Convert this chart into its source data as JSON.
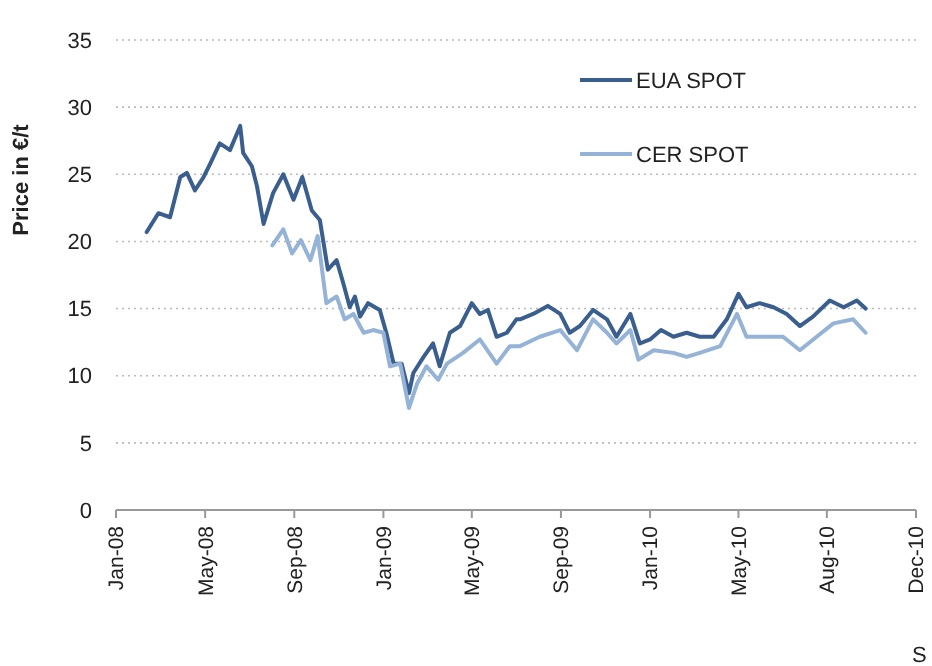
{
  "chart_data": {
    "type": "line",
    "ylabel": "Price in €/t",
    "annotations": [
      "S"
    ],
    "xlim": [
      "2008-01-01",
      "2010-12-31"
    ],
    "xticks": [
      {
        "value": "2008-01-01",
        "label": "Jan-08"
      },
      {
        "value": "2008-05-02",
        "label": "May-08"
      },
      {
        "value": "2008-09-01",
        "label": "Sep-08"
      },
      {
        "value": "2009-01-01",
        "label": "Jan-09"
      },
      {
        "value": "2009-05-02",
        "label": "May-09"
      },
      {
        "value": "2009-09-01",
        "label": "Sep-09"
      },
      {
        "value": "2010-01-01",
        "label": "Jan-10"
      },
      {
        "value": "2010-05-02",
        "label": "May-10"
      },
      {
        "value": "2010-08-31",
        "label": "Aug-10"
      },
      {
        "value": "2010-12-31",
        "label": "Dec-10"
      }
    ],
    "ylim": [
      0,
      35
    ],
    "yticks": [
      0,
      5,
      10,
      15,
      20,
      25,
      30,
      35
    ],
    "grid": "y",
    "legend": "top right",
    "line_style": "solid",
    "series": [
      {
        "name": "EUA SPOT",
        "color": "#3a5f8f",
        "x": [
          "2008-02-12",
          "2008-02-28",
          "2008-03-15",
          "2008-03-29",
          "2008-04-07",
          "2008-04-18",
          "2008-04-30",
          "2008-05-09",
          "2008-05-22",
          "2008-06-05",
          "2008-06-19",
          "2008-06-23",
          "2008-07-05",
          "2008-07-12",
          "2008-07-21",
          "2008-08-03",
          "2008-08-17",
          "2008-08-31",
          "2008-09-12",
          "2008-09-25",
          "2008-10-06",
          "2008-10-17",
          "2008-10-29",
          "2008-11-07",
          "2008-11-16",
          "2008-11-23",
          "2008-11-30",
          "2008-12-11",
          "2008-12-27",
          "2009-01-05",
          "2009-01-15",
          "2009-01-26",
          "2009-02-05",
          "2009-02-11",
          "2009-02-25",
          "2009-03-10",
          "2009-03-19",
          "2009-04-02",
          "2009-04-16",
          "2009-05-02",
          "2009-05-13",
          "2009-05-24",
          "2009-06-05",
          "2009-06-19",
          "2009-07-02",
          "2009-07-07",
          "2009-07-25",
          "2009-08-14",
          "2009-08-31",
          "2009-09-13",
          "2009-09-27",
          "2009-10-15",
          "2009-11-03",
          "2009-11-16",
          "2009-12-05",
          "2009-12-18",
          "2010-01-01",
          "2010-01-16",
          "2010-02-02",
          "2010-02-20",
          "2010-03-10",
          "2010-03-29",
          "2010-04-16",
          "2010-05-02",
          "2010-05-13",
          "2010-05-31",
          "2010-06-19",
          "2010-07-07",
          "2010-07-25",
          "2010-08-12",
          "2010-09-04",
          "2010-09-23",
          "2010-10-11",
          "2010-10-23"
        ],
        "values": [
          20.7,
          22.1,
          21.8,
          24.8,
          25.1,
          23.8,
          24.8,
          25.8,
          27.3,
          26.8,
          28.6,
          26.6,
          25.6,
          24.1,
          21.3,
          23.6,
          25.0,
          23.1,
          24.8,
          22.3,
          21.6,
          17.9,
          18.6,
          16.9,
          15.1,
          15.9,
          14.4,
          15.4,
          14.9,
          13.2,
          10.9,
          10.9,
          8.7,
          10.2,
          11.4,
          12.4,
          10.7,
          13.2,
          13.7,
          15.4,
          14.6,
          14.9,
          12.9,
          13.2,
          14.2,
          14.2,
          14.6,
          15.2,
          14.6,
          13.2,
          13.7,
          14.9,
          14.2,
          12.9,
          14.6,
          12.4,
          12.7,
          13.4,
          12.9,
          13.2,
          12.9,
          12.9,
          14.2,
          16.1,
          15.1,
          15.4,
          15.1,
          14.6,
          13.7,
          14.4,
          15.6,
          15.1,
          15.6,
          15.0
        ]
      },
      {
        "name": "CER SPOT",
        "color": "#95b3d7",
        "x": [
          "2008-08-02",
          "2008-08-17",
          "2008-08-29",
          "2008-09-10",
          "2008-09-23",
          "2008-10-03",
          "2008-10-15",
          "2008-10-29",
          "2008-11-09",
          "2008-11-21",
          "2008-12-05",
          "2008-12-18",
          "2009-01-01",
          "2009-01-10",
          "2009-01-24",
          "2009-02-05",
          "2009-02-16",
          "2009-03-01",
          "2009-03-17",
          "2009-03-29",
          "2009-04-20",
          "2009-05-13",
          "2009-06-05",
          "2009-06-23",
          "2009-07-07",
          "2009-08-03",
          "2009-08-31",
          "2009-09-23",
          "2009-10-15",
          "2009-11-03",
          "2009-11-16",
          "2009-12-05",
          "2009-12-16",
          "2010-01-06",
          "2010-02-02",
          "2010-02-20",
          "2010-03-10",
          "2010-04-07",
          "2010-04-30",
          "2010-05-13",
          "2010-06-05",
          "2010-07-02",
          "2010-07-25",
          "2010-08-17",
          "2010-09-09",
          "2010-10-06",
          "2010-10-23"
        ],
        "values": [
          19.7,
          20.9,
          19.1,
          20.1,
          18.6,
          20.4,
          15.4,
          15.9,
          14.2,
          14.6,
          13.2,
          13.4,
          13.2,
          10.7,
          10.9,
          7.6,
          9.4,
          10.7,
          9.7,
          10.9,
          11.7,
          12.7,
          10.9,
          12.2,
          12.2,
          12.9,
          13.4,
          11.9,
          14.2,
          13.2,
          12.4,
          13.4,
          11.2,
          11.9,
          11.7,
          11.4,
          11.7,
          12.2,
          14.6,
          12.9,
          12.9,
          12.9,
          11.9,
          12.9,
          13.9,
          14.2,
          13.2
        ]
      }
    ]
  }
}
